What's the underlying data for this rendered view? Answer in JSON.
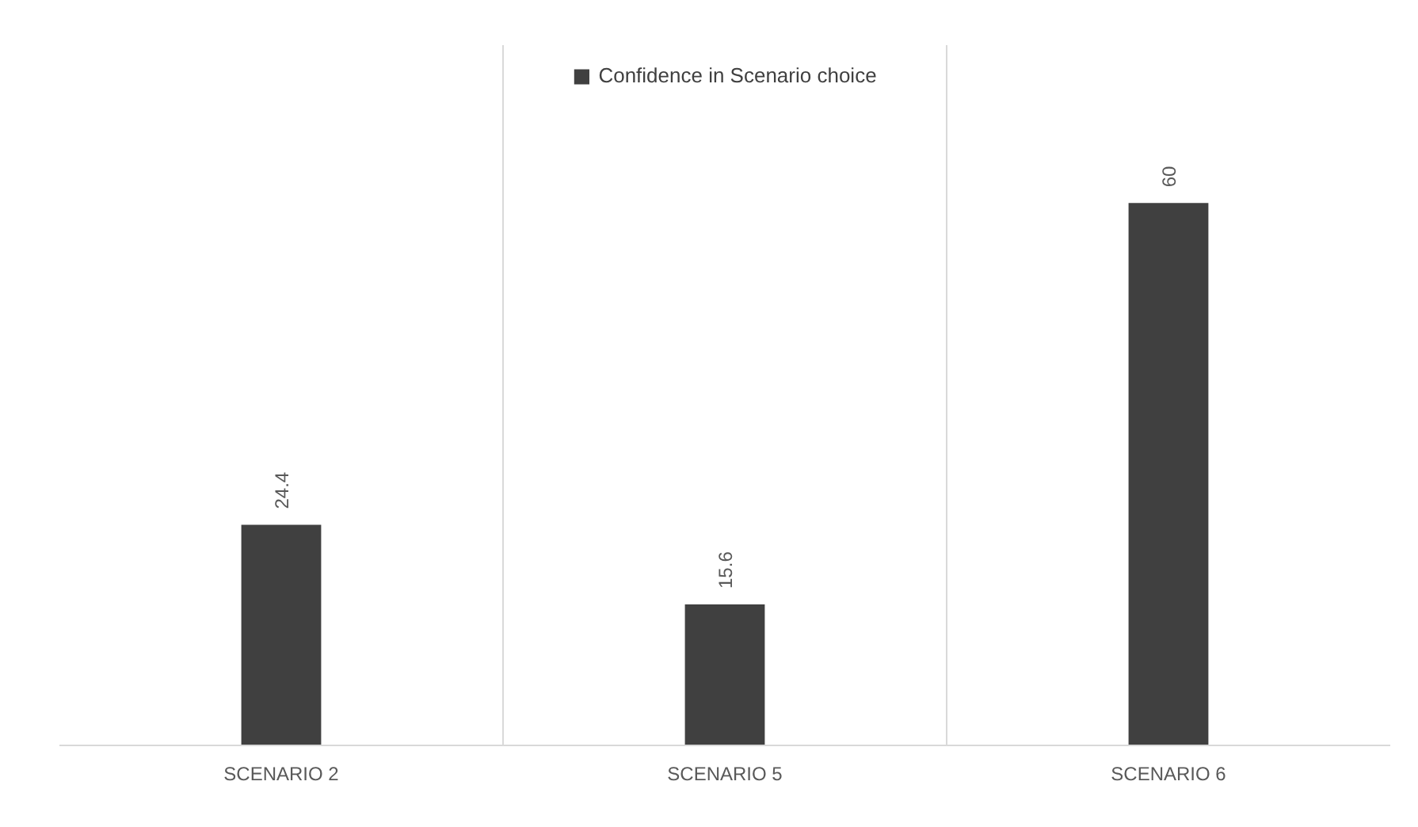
{
  "chart_data": {
    "type": "bar",
    "categories": [
      "SCENARIO 2",
      "SCENARIO 5",
      "SCENARIO 6"
    ],
    "series": [
      {
        "name": "Confidence in Scenario choice",
        "color": "#404040",
        "values": [
          24.4,
          15.6,
          60
        ]
      }
    ],
    "data_labels": true,
    "grid": "x",
    "legend": "top"
  }
}
